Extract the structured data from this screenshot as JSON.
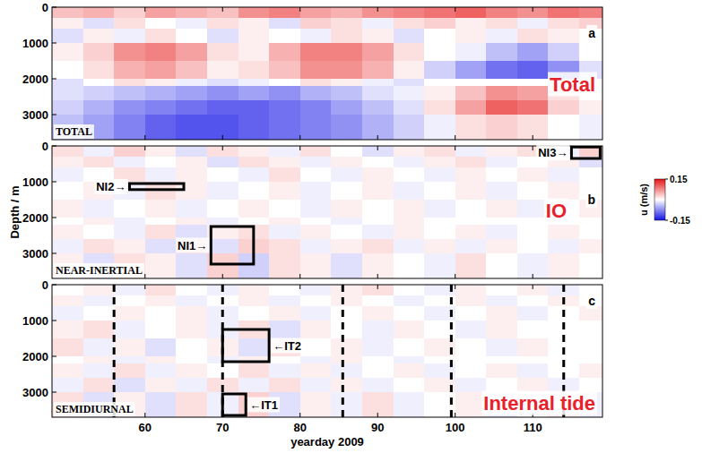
{
  "chart_data": [
    {
      "type": "heatmap",
      "title": "TOTAL",
      "label": "a",
      "annotation": "Total",
      "xlim": [
        48,
        119
      ],
      "ylim": [
        0,
        3700
      ],
      "xticks": [
        60,
        70,
        80,
        90,
        100,
        110
      ],
      "yticks": [
        0,
        1000,
        2000,
        3000
      ],
      "tick_labels": "y",
      "x_edges": [
        48,
        52,
        56,
        60,
        64,
        68,
        72,
        76,
        80,
        84,
        88,
        92,
        96,
        100,
        104,
        108,
        112,
        116,
        119
      ],
      "y_edges": [
        0,
        300,
        600,
        1000,
        1500,
        2000,
        2200,
        2600,
        3000,
        3700
      ],
      "values": [
        [
          0.04,
          0.05,
          0.03,
          0.06,
          0.05,
          0.04,
          0.07,
          0.08,
          0.06,
          0.05,
          0.07,
          0.08,
          0.09,
          0.1,
          0.08,
          0.07,
          0.09,
          0.08
        ],
        [
          0.01,
          -0.02,
          0.02,
          0.0,
          -0.01,
          0.02,
          0.01,
          -0.02,
          0.03,
          0.02,
          -0.01,
          0.02,
          0.03,
          0.01,
          0.02,
          -0.01,
          0.02,
          0.03
        ],
        [
          -0.02,
          0.01,
          -0.01,
          0.02,
          0.0,
          -0.02,
          0.01,
          0.0,
          -0.01,
          0.02,
          0.01,
          -0.02,
          0.0,
          0.01,
          -0.01,
          0.02,
          0.01,
          0.0
        ],
        [
          0.01,
          0.03,
          0.07,
          0.08,
          0.06,
          0.02,
          0.01,
          0.05,
          0.08,
          0.08,
          0.06,
          0.02,
          0.0,
          -0.01,
          -0.04,
          -0.06,
          -0.03,
          0.0
        ],
        [
          0.0,
          0.02,
          0.05,
          0.06,
          0.04,
          0.01,
          0.02,
          0.04,
          0.07,
          0.07,
          0.05,
          0.01,
          -0.03,
          -0.06,
          -0.09,
          -0.1,
          -0.07,
          -0.02
        ],
        [
          -0.02,
          0.0,
          0.02,
          0.01,
          -0.01,
          -0.02,
          -0.01,
          0.0,
          0.02,
          0.01,
          -0.01,
          -0.02,
          null,
          null,
          null,
          null,
          null,
          null
        ],
        [
          -0.02,
          -0.03,
          -0.04,
          -0.05,
          -0.06,
          -0.07,
          -0.06,
          -0.07,
          -0.05,
          -0.04,
          -0.02,
          -0.01,
          0.01,
          0.04,
          0.07,
          0.06,
          0.02,
          0.0
        ],
        [
          -0.03,
          -0.05,
          -0.07,
          -0.08,
          -0.09,
          -0.1,
          -0.1,
          -0.09,
          -0.08,
          -0.06,
          -0.04,
          -0.02,
          0.02,
          0.06,
          0.1,
          0.09,
          0.03,
          0.01
        ],
        [
          -0.04,
          -0.06,
          -0.08,
          -0.1,
          -0.11,
          -0.11,
          -0.1,
          -0.09,
          -0.08,
          -0.07,
          -0.05,
          -0.03,
          -0.01,
          0.02,
          0.03,
          0.02,
          0.0,
          -0.01
        ]
      ]
    },
    {
      "type": "heatmap",
      "title": "NEAR-INERTIAL",
      "label": "b",
      "annotation": "IO",
      "ylabel": "Depth / m",
      "xlim": [
        48,
        119
      ],
      "ylim": [
        0,
        3700
      ],
      "xticks": [
        60,
        70,
        80,
        90,
        100,
        110
      ],
      "yticks": [
        0,
        1000,
        2000,
        3000
      ],
      "tick_labels": "y",
      "x_edges": [
        48,
        52,
        56,
        60,
        64,
        68,
        72,
        76,
        80,
        84,
        88,
        92,
        96,
        100,
        104,
        108,
        112,
        116,
        119
      ],
      "y_edges": [
        0,
        300,
        600,
        1000,
        1500,
        2000,
        2200,
        2600,
        3000,
        3700
      ],
      "values": [
        [
          0.02,
          -0.01,
          0.03,
          0.01,
          -0.02,
          0.02,
          0.01,
          -0.01,
          0.02,
          0.0,
          -0.02,
          0.01,
          0.02,
          -0.01,
          0.01,
          0.02,
          -0.01,
          0.03
        ],
        [
          0.01,
          0.02,
          -0.01,
          0.0,
          0.01,
          -0.02,
          0.02,
          0.01,
          -0.01,
          0.01,
          0.0,
          -0.01,
          0.01,
          0.02,
          -0.01,
          0.0,
          0.01,
          -0.02
        ],
        [
          -0.01,
          0.0,
          0.02,
          -0.01,
          0.01,
          0.0,
          -0.01,
          0.02,
          0.0,
          -0.01,
          0.01,
          0.0,
          -0.01,
          0.01,
          0.0,
          0.01,
          -0.01,
          0.0
        ],
        [
          0.0,
          0.01,
          -0.01,
          0.02,
          0.01,
          -0.01,
          0.0,
          0.01,
          -0.01,
          0.0,
          0.01,
          -0.01,
          0.0,
          0.01,
          -0.01,
          0.0,
          0.01,
          0.0
        ],
        [
          0.01,
          -0.01,
          0.0,
          0.01,
          -0.01,
          0.0,
          0.01,
          0.0,
          -0.01,
          0.01,
          0.0,
          0.01,
          -0.01,
          0.0,
          0.01,
          -0.01,
          0.0,
          0.01
        ],
        [
          0.0,
          0.01,
          -0.01,
          0.0,
          0.01,
          -0.01,
          0.0,
          0.01,
          0.0,
          -0.01,
          0.0,
          0.01,
          null,
          null,
          null,
          null,
          null,
          null
        ],
        [
          0.01,
          0.0,
          -0.01,
          0.02,
          -0.02,
          0.01,
          0.02,
          -0.01,
          0.01,
          0.0,
          -0.01,
          0.01,
          0.0,
          0.01,
          -0.01,
          0.0,
          0.01,
          0.0
        ],
        [
          -0.01,
          0.02,
          0.01,
          -0.02,
          0.03,
          -0.02,
          0.03,
          0.02,
          -0.01,
          0.01,
          0.02,
          -0.01,
          0.01,
          -0.01,
          0.01,
          0.0,
          -0.01,
          0.01
        ],
        [
          0.01,
          -0.02,
          0.02,
          0.01,
          -0.02,
          0.03,
          -0.03,
          0.02,
          0.01,
          -0.02,
          0.01,
          0.0,
          -0.01,
          0.02,
          0.0,
          -0.01,
          0.01,
          0.0
        ]
      ],
      "boxes": [
        {
          "label": "NI1→",
          "x": [
            68.5,
            74
          ],
          "y": [
            2250,
            3300
          ]
        },
        {
          "label": "NI2→",
          "x": [
            58,
            65
          ],
          "y": [
            1050,
            1220
          ]
        },
        {
          "label": "NI3→",
          "x": [
            115,
            118.7
          ],
          "y": [
            30,
            350
          ]
        }
      ]
    },
    {
      "type": "heatmap",
      "title": "SEMIDIURNAL",
      "label": "c",
      "annotation": "Internal tide",
      "xlabel": "yearday 2009",
      "xlim": [
        48,
        119
      ],
      "ylim": [
        0,
        3700
      ],
      "xticks": [
        60,
        70,
        80,
        90,
        100,
        110
      ],
      "yticks": [
        0,
        1000,
        2000,
        3000
      ],
      "x_edges": [
        48,
        52,
        56,
        60,
        64,
        68,
        72,
        76,
        80,
        84,
        88,
        92,
        96,
        100,
        104,
        108,
        112,
        116,
        119
      ],
      "y_edges": [
        0,
        300,
        600,
        1000,
        1500,
        2000,
        2200,
        2600,
        3000,
        3700
      ],
      "values": [
        [
          0.0,
          0.01,
          -0.01,
          0.02,
          0.0,
          -0.01,
          0.01,
          0.0,
          -0.01,
          0.01,
          0.02,
          0.0,
          -0.01,
          0.01,
          0.0,
          0.01,
          -0.01,
          0.0
        ],
        [
          0.01,
          -0.01,
          0.0,
          0.01,
          -0.01,
          0.0,
          0.01,
          -0.01,
          0.0,
          0.01,
          0.0,
          -0.01,
          0.0,
          0.01,
          -0.01,
          0.0,
          0.01,
          0.0
        ],
        [
          -0.01,
          0.0,
          0.01,
          0.0,
          0.01,
          -0.01,
          0.0,
          0.01,
          -0.01,
          0.0,
          0.01,
          0.0,
          -0.01,
          0.0,
          0.01,
          -0.01,
          0.0,
          0.01
        ],
        [
          0.01,
          0.02,
          -0.01,
          0.0,
          0.01,
          -0.01,
          0.02,
          -0.02,
          0.01,
          0.0,
          -0.01,
          0.01,
          0.0,
          -0.01,
          0.01,
          0.0,
          null,
          null
        ],
        [
          0.02,
          -0.01,
          0.01,
          -0.02,
          0.0,
          0.01,
          -0.02,
          0.02,
          0.0,
          0.01,
          -0.01,
          0.0,
          0.01,
          0.0,
          -0.01,
          0.01,
          null,
          null
        ],
        [
          0.0,
          0.01,
          -0.01,
          0.01,
          0.0,
          -0.01,
          0.01,
          0.0,
          -0.01,
          0.01,
          0.0,
          -0.01,
          null,
          null,
          null,
          null,
          null,
          null
        ],
        [
          0.01,
          -0.01,
          0.02,
          -0.01,
          0.01,
          0.0,
          0.02,
          -0.01,
          0.01,
          -0.01,
          0.0,
          0.01,
          -0.01,
          0.0,
          0.01,
          -0.01,
          0.0,
          0.01
        ],
        [
          -0.01,
          0.02,
          -0.02,
          0.01,
          -0.01,
          0.02,
          -0.01,
          0.02,
          -0.01,
          0.01,
          -0.01,
          0.0,
          0.01,
          -0.01,
          0.0,
          0.01,
          -0.01,
          0.0
        ],
        [
          0.02,
          -0.02,
          0.01,
          -0.02,
          0.02,
          -0.01,
          0.03,
          -0.02,
          0.01,
          -0.01,
          0.02,
          -0.01,
          0.0,
          0.01,
          -0.01,
          0.0,
          0.01,
          -0.01
        ]
      ],
      "vlines": [
        56,
        70,
        85.5,
        99.5,
        114
      ],
      "boxes": [
        {
          "label": "←IT1",
          "x": [
            70,
            73
          ],
          "y": [
            3050,
            3650
          ]
        },
        {
          "label": "←IT2",
          "x": [
            70,
            76
          ],
          "y": [
            1250,
            2150
          ]
        }
      ]
    }
  ],
  "colorbar": {
    "label": "u (m/s)",
    "range": [
      -0.15,
      0.15
    ],
    "ticks": [
      -0.15,
      0.15
    ]
  }
}
